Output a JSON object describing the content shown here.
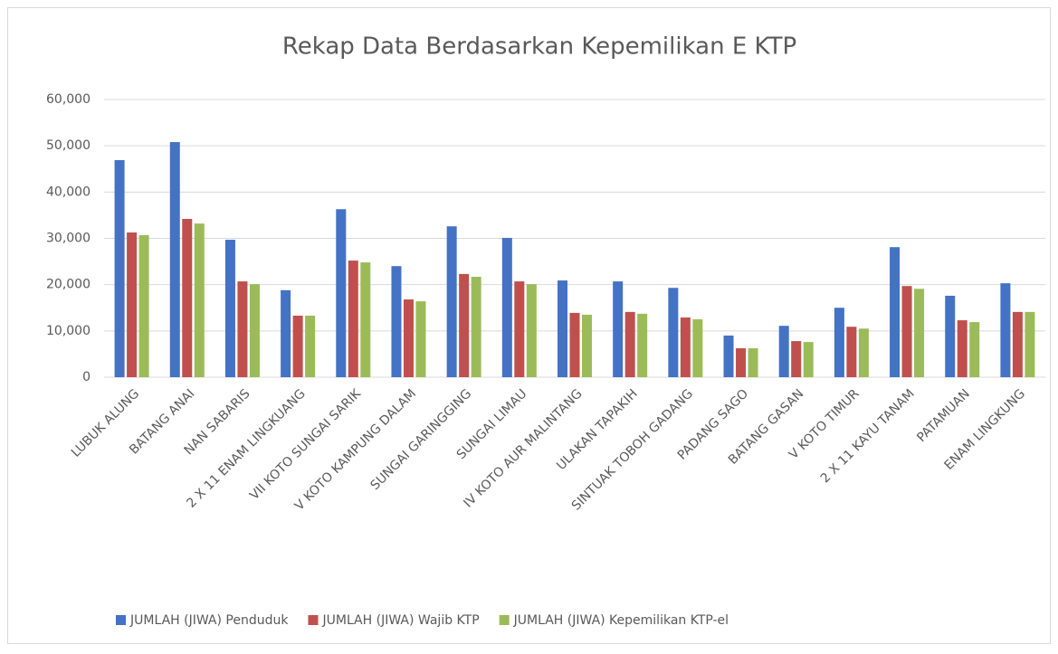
{
  "chart_data": {
    "type": "bar",
    "title": "Rekap Data Berdasarkan Kepemilikan E KTP",
    "categories": [
      "LUBUK ALUNG",
      "BATANG ANAI",
      "NAN SABARIS",
      "2 X 11 ENAM LINGKUANG",
      "VII KOTO SUNGAI SARIK",
      "V KOTO KAMPUNG DALAM",
      "SUNGAI GARINGGING",
      "SUNGAI LIMAU",
      "IV KOTO AUR MALINTANG",
      "ULAKAN TAPAKIH",
      "SINTUAK TOBOH GADANG",
      "PADANG SAGO",
      "BATANG GASAN",
      "V KOTO TIMUR",
      "2 X 11 KAYU TANAM",
      "PATAMUAN",
      "ENAM LINGKUNG"
    ],
    "series": [
      {
        "name": "JUMLAH (JIWA) Penduduk",
        "color": "#4472c4",
        "values": [
          46900,
          50800,
          29700,
          18800,
          36300,
          24000,
          32600,
          30100,
          20900,
          20700,
          19300,
          9000,
          11100,
          15000,
          28100,
          17600,
          20300
        ]
      },
      {
        "name": "JUMLAH (JIWA) Wajib KTP",
        "color": "#c0504d",
        "values": [
          31270,
          34200,
          20700,
          13300,
          25200,
          16800,
          22300,
          20700,
          13900,
          14100,
          12900,
          6250,
          7800,
          10900,
          19700,
          12300,
          14100
        ]
      },
      {
        "name": "JUMLAH (JIWA) Kepemilikan KTP-el",
        "color": "#9bbb59",
        "values": [
          30680,
          33200,
          20100,
          13300,
          24800,
          16400,
          21700,
          20100,
          13500,
          13700,
          12500,
          6250,
          7600,
          10500,
          19100,
          11900,
          14100
        ]
      }
    ],
    "ylim": [
      0,
      60000
    ],
    "yticks": [
      0,
      {
        "value": 10000,
        "label": "10,000"
      },
      {
        "value": 20000,
        "label": "20,000"
      },
      {
        "value": 30000,
        "label": "30,000"
      },
      {
        "value": 40000,
        "label": "40,000"
      },
      {
        "value": 50000,
        "label": "50,000"
      },
      {
        "value": 60000,
        "label": "60,000"
      }
    ],
    "grid": true
  }
}
